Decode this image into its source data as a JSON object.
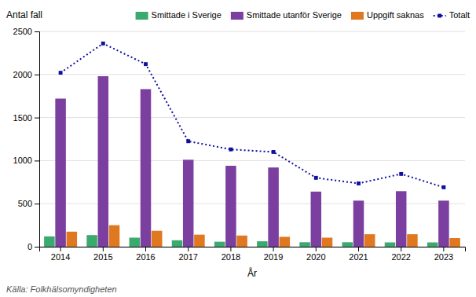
{
  "chart_data": {
    "type": "bar",
    "categories": [
      "2014",
      "2015",
      "2016",
      "2017",
      "2018",
      "2019",
      "2020",
      "2021",
      "2022",
      "2023"
    ],
    "series": [
      {
        "name": "Smittade i Sverige",
        "color": "#3aaa6e",
        "values": [
          120,
          135,
          105,
          75,
          58,
          63,
          52,
          52,
          50,
          50
        ]
      },
      {
        "name": "Smittade utanför Sverige",
        "color": "#7b3fa0",
        "values": [
          1720,
          1980,
          1830,
          1010,
          940,
          920,
          640,
          535,
          645,
          535
        ]
      },
      {
        "name": "Uppgift saknas",
        "color": "#e07820",
        "values": [
          175,
          250,
          185,
          140,
          130,
          115,
          105,
          145,
          145,
          100
        ]
      },
      {
        "name": "Totalt",
        "type": "line",
        "color": "#1010a0",
        "line_style": "dotted",
        "marker": "square",
        "values": [
          2020,
          2360,
          2120,
          1225,
          1130,
          1100,
          800,
          735,
          845,
          690
        ]
      }
    ],
    "xlabel": "År",
    "ylabel": "Antal fall",
    "annotations": [
      "Källa: Folkhälsomyndigheten"
    ],
    "ylim": [
      0,
      2500
    ],
    "yticks": [
      0,
      500,
      1000,
      1500,
      2000,
      2500
    ],
    "grid": true,
    "legend": "top-right"
  }
}
